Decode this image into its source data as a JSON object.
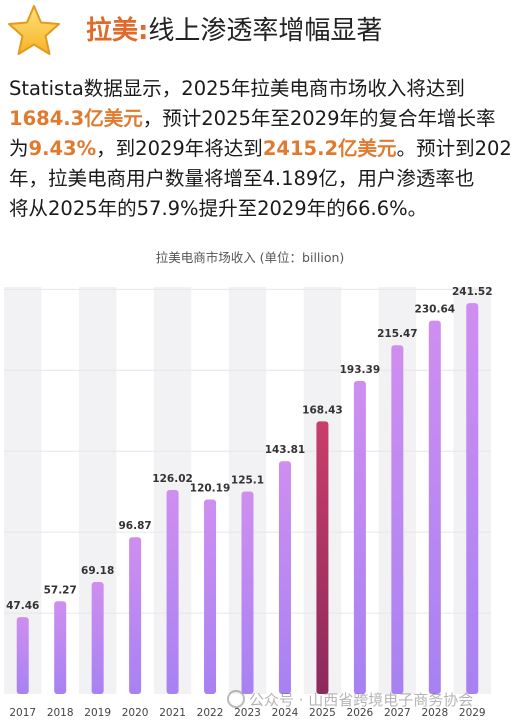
{
  "header": {
    "icon": "star-icon",
    "prefix": "拉美:",
    "title": "线上渗透率增幅显著"
  },
  "intro": {
    "line1": "Statista数据显示，2025年拉美电商市场收入将达到",
    "line2_hl": "1684.3亿美元",
    "line2_rest": "，预计2025年至2029年的复合年增长率",
    "line3_pre": "为",
    "line3_hl1": "9.43%",
    "line3_mid": "，到2029年将达到",
    "line3_hl2": "2415.2亿美元",
    "line3_post": "。预计到202",
    "line4": "年，拉美电商用户数量将增至4.189亿，用户渗透率也",
    "line5": "将从2025年的57.9%提升至2029年的66.6%。"
  },
  "chart_data": {
    "type": "bar",
    "title": "拉美电商市场收入 (单位：billion)",
    "categories": [
      "2017",
      "2018",
      "2019",
      "2020",
      "2021",
      "2022",
      "2023",
      "2024",
      "2025",
      "2026",
      "2027",
      "2028",
      "2029"
    ],
    "values": [
      47.46,
      57.27,
      69.18,
      96.87,
      126.02,
      120.19,
      125.1,
      143.81,
      168.43,
      193.39,
      215.47,
      230.64,
      241.52
    ],
    "highlight_category": "2025",
    "ylim": [
      0,
      250
    ],
    "grid": true,
    "colors": {
      "bar_top": "#cf8ef0",
      "bar_bottom": "#a782f2",
      "highlight_top": "#c93e6a",
      "highlight_bottom": "#8c2a5c",
      "column_bg": "#f2f2f4",
      "gridline": "#e6e6ea"
    }
  },
  "watermark": {
    "text": "公众号 · 山西省跨境电子商务协会"
  }
}
